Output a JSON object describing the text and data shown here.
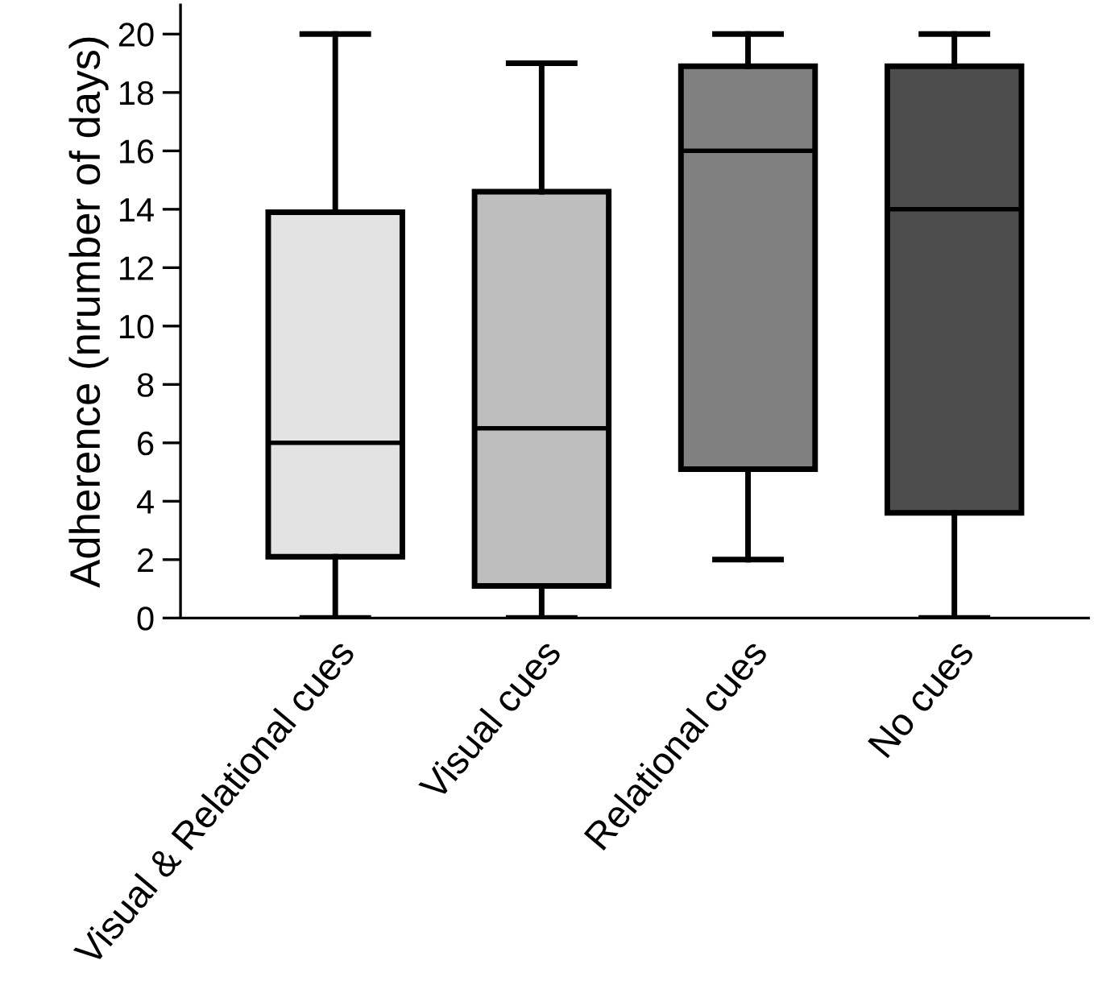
{
  "chart_data": {
    "type": "box",
    "ylabel": "Adherence (nrumber of days)",
    "categories": [
      "Visual & Relational cues",
      "Visual cues",
      "Relational cues",
      "No cues"
    ],
    "boxes": [
      {
        "low": 0,
        "q1": 2.1,
        "median": 6,
        "q3": 13.9,
        "high": 20
      },
      {
        "low": 0,
        "q1": 1.1,
        "median": 6.5,
        "q3": 14.6,
        "high": 19
      },
      {
        "low": 2,
        "q1": 5.1,
        "median": 16,
        "q3": 18.9,
        "high": 20
      },
      {
        "low": 0,
        "q1": 3.6,
        "median": 14,
        "q3": 18.9,
        "high": 20
      }
    ],
    "colors": [
      "#e3e3e3",
      "#bebebe",
      "#808080",
      "#4d4d4d"
    ],
    "ylim": [
      0,
      21
    ],
    "yticks": [
      0,
      2,
      4,
      6,
      8,
      10,
      12,
      14,
      16,
      18,
      20
    ],
    "grid": false,
    "legend": false
  }
}
